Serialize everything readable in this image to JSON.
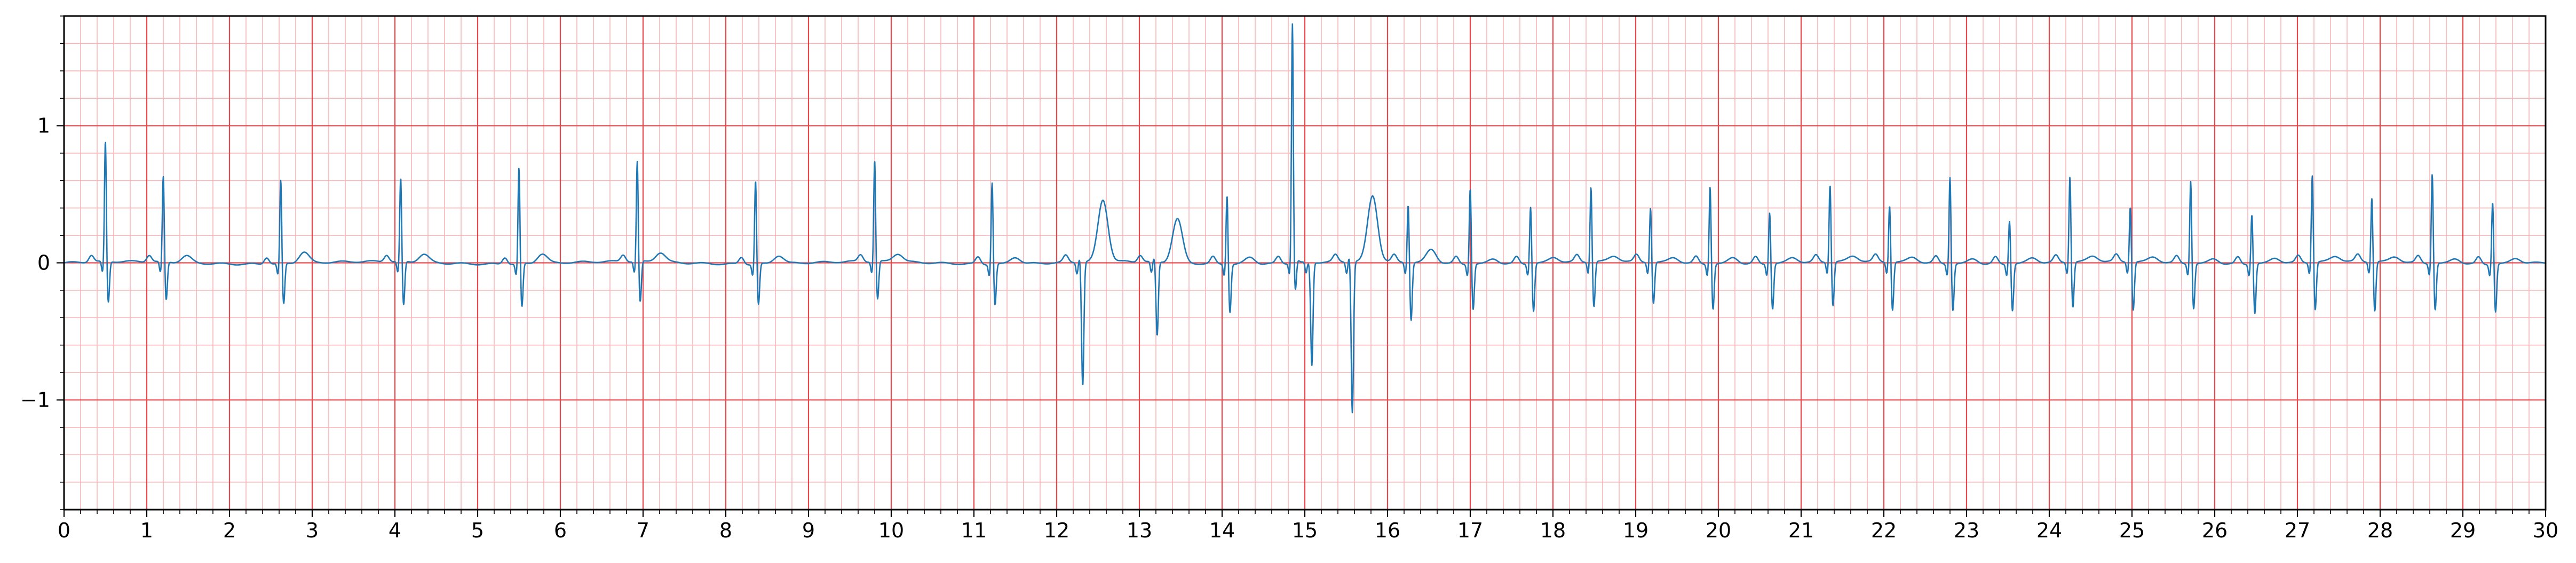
{
  "colors": {
    "background": "#ffffff",
    "major_grid": "#e8474c",
    "minor_grid": "#f7b5b7",
    "trace": "#1f77b4",
    "axis": "#000000"
  },
  "chart_data": {
    "type": "line",
    "title": "",
    "xlabel": "",
    "ylabel": "",
    "xlim": [
      0,
      30
    ],
    "ylim": [
      -1.8,
      1.8
    ],
    "grid": true,
    "grid_major_x_step": 1,
    "grid_major_y_step": 1,
    "grid_minor_x_step": 0.2,
    "grid_minor_y_step": 0.2,
    "x_ticks": [
      0,
      1,
      2,
      3,
      4,
      5,
      6,
      7,
      8,
      9,
      10,
      11,
      12,
      13,
      14,
      15,
      16,
      17,
      18,
      19,
      20,
      21,
      22,
      23,
      24,
      25,
      26,
      27,
      28,
      29,
      30
    ],
    "x_tick_labels": [
      "0",
      "1",
      "2",
      "3",
      "4",
      "5",
      "6",
      "7",
      "8",
      "9",
      "10",
      "11",
      "12",
      "13",
      "14",
      "15",
      "16",
      "17",
      "18",
      "19",
      "20",
      "21",
      "22",
      "23",
      "24",
      "25",
      "26",
      "27",
      "28",
      "29",
      "30"
    ],
    "y_ticks": [
      -1,
      0,
      1
    ],
    "y_tick_labels": [
      "−1",
      "0",
      "1"
    ],
    "beats": [
      {
        "t": 0.5,
        "r": 0.89,
        "s": -0.3,
        "t_amp": 0.0
      },
      {
        "t": 1.2,
        "r": 0.63,
        "s": -0.28,
        "t_amp": 0.05
      },
      {
        "t": 2.62,
        "r": 0.62,
        "s": -0.3,
        "t_amp": 0.08
      },
      {
        "t": 4.07,
        "r": 0.62,
        "s": -0.32,
        "t_amp": 0.06
      },
      {
        "t": 5.5,
        "r": 0.71,
        "s": -0.32,
        "t_amp": 0.07
      },
      {
        "t": 6.93,
        "r": 0.74,
        "s": -0.3,
        "t_amp": 0.07
      },
      {
        "t": 8.36,
        "r": 0.62,
        "s": -0.3,
        "t_amp": 0.06
      },
      {
        "t": 9.8,
        "r": 0.75,
        "s": -0.28,
        "t_amp": 0.06
      },
      {
        "t": 11.22,
        "r": 0.61,
        "s": -0.3,
        "t_amp": 0.05
      },
      {
        "t": 12.28,
        "r": 0.04,
        "s": -0.9,
        "t_amp": 0.45
      },
      {
        "t": 13.18,
        "r": 0.03,
        "s": -0.54,
        "t_amp": 0.32
      },
      {
        "t": 14.06,
        "r": 0.52,
        "s": -0.35,
        "t_amp": 0.05
      },
      {
        "t": 14.85,
        "r": 1.73,
        "s": -0.25,
        "t_amp": 0.0
      },
      {
        "t": 15.05,
        "r": 0.0,
        "s": -0.75,
        "t_amp": 0.0
      },
      {
        "t": 15.54,
        "r": 0.05,
        "s": -1.1,
        "t_amp": 0.48
      },
      {
        "t": 16.25,
        "r": 0.44,
        "s": -0.42,
        "t_amp": 0.1
      },
      {
        "t": 17.0,
        "r": 0.57,
        "s": -0.33,
        "t_amp": 0.04
      },
      {
        "t": 17.73,
        "r": 0.43,
        "s": -0.35,
        "t_amp": 0.04
      },
      {
        "t": 18.46,
        "r": 0.56,
        "s": -0.33,
        "t_amp": 0.04
      },
      {
        "t": 19.18,
        "r": 0.41,
        "s": -0.3,
        "t_amp": 0.04
      },
      {
        "t": 19.9,
        "r": 0.58,
        "s": -0.33,
        "t_amp": 0.05
      },
      {
        "t": 20.62,
        "r": 0.39,
        "s": -0.33,
        "t_amp": 0.04
      },
      {
        "t": 21.35,
        "r": 0.58,
        "s": -0.32,
        "t_amp": 0.04
      },
      {
        "t": 22.07,
        "r": 0.43,
        "s": -0.35,
        "t_amp": 0.04
      },
      {
        "t": 22.8,
        "r": 0.65,
        "s": -0.34,
        "t_amp": 0.04
      },
      {
        "t": 23.52,
        "r": 0.33,
        "s": -0.34,
        "t_amp": 0.04
      },
      {
        "t": 24.25,
        "r": 0.64,
        "s": -0.33,
        "t_amp": 0.04
      },
      {
        "t": 24.98,
        "r": 0.42,
        "s": -0.35,
        "t_amp": 0.04
      },
      {
        "t": 25.71,
        "r": 0.62,
        "s": -0.33,
        "t_amp": 0.04
      },
      {
        "t": 26.45,
        "r": 0.38,
        "s": -0.36,
        "t_amp": 0.04
      },
      {
        "t": 27.18,
        "r": 0.65,
        "s": -0.35,
        "t_amp": 0.04
      },
      {
        "t": 27.9,
        "r": 0.48,
        "s": -0.36,
        "t_amp": 0.04
      },
      {
        "t": 28.63,
        "r": 0.67,
        "s": -0.34,
        "t_amp": 0.04
      },
      {
        "t": 29.36,
        "r": 0.47,
        "s": -0.35,
        "t_amp": 0.04
      }
    ]
  }
}
